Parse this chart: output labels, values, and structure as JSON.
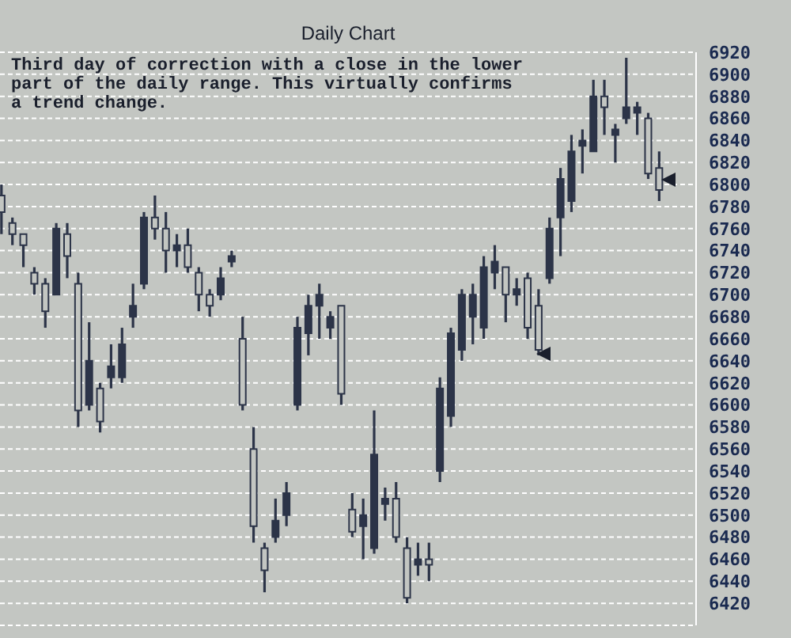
{
  "chart_data": {
    "type": "candlestick",
    "title": "Daily Chart",
    "annotations": [
      "Third day of correction with a close in the lower part of the daily range. This virtually confirms a trend change."
    ],
    "categories": [
      null,
      null,
      null,
      null,
      null,
      null,
      null,
      null,
      null,
      null,
      null,
      null,
      null,
      null,
      null,
      null,
      null,
      null,
      null,
      null,
      null,
      null,
      null,
      null,
      null,
      null,
      null,
      null,
      null,
      null,
      null,
      null,
      null,
      null,
      null,
      null,
      null,
      null,
      null,
      null,
      null,
      null,
      null,
      null,
      null,
      null,
      null,
      null,
      null,
      null,
      null,
      null,
      null,
      null,
      null,
      null,
      null,
      null,
      null,
      null,
      null
    ],
    "ohlc": [
      [
        6790,
        6800,
        6755,
        6775
      ],
      [
        6765,
        6770,
        6745,
        6755
      ],
      [
        6755,
        6755,
        6725,
        6745
      ],
      [
        6720,
        6725,
        6700,
        6710
      ],
      [
        6710,
        6715,
        6670,
        6685
      ],
      [
        6700,
        6765,
        6700,
        6760
      ],
      [
        6755,
        6765,
        6715,
        6735
      ],
      [
        6710,
        6720,
        6580,
        6595
      ],
      [
        6600,
        6675,
        6595,
        6640
      ],
      [
        6615,
        6620,
        6575,
        6585
      ],
      [
        6625,
        6655,
        6615,
        6635
      ],
      [
        6625,
        6670,
        6620,
        6655
      ],
      [
        6680,
        6710,
        6670,
        6690
      ],
      [
        6710,
        6775,
        6705,
        6770
      ],
      [
        6770,
        6790,
        6750,
        6760
      ],
      [
        6760,
        6775,
        6720,
        6740
      ],
      [
        6740,
        6755,
        6725,
        6745
      ],
      [
        6745,
        6760,
        6720,
        6725
      ],
      [
        6720,
        6725,
        6685,
        6700
      ],
      [
        6700,
        6705,
        6680,
        6690
      ],
      [
        6700,
        6725,
        6695,
        6715
      ],
      [
        6730,
        6740,
        6725,
        6735
      ],
      [
        6660,
        6680,
        6595,
        6600
      ],
      [
        6560,
        6580,
        6475,
        6490
      ],
      [
        6470,
        6475,
        6430,
        6450
      ],
      [
        6480,
        6515,
        6475,
        6495
      ],
      [
        6500,
        6530,
        6490,
        6520
      ],
      [
        6600,
        6680,
        6595,
        6670
      ],
      [
        6665,
        6700,
        6645,
        6690
      ],
      [
        6690,
        6710,
        6660,
        6700
      ],
      [
        6670,
        6685,
        6660,
        6680
      ],
      [
        6690,
        6690,
        6600,
        6610
      ],
      [
        6505,
        6520,
        6480,
        6485
      ],
      [
        6490,
        6515,
        6460,
        6500
      ],
      [
        6470,
        6595,
        6465,
        6555
      ],
      [
        6510,
        6525,
        6495,
        6515
      ],
      [
        6515,
        6530,
        6475,
        6480
      ],
      [
        6470,
        6480,
        6420,
        6425
      ],
      [
        6455,
        6475,
        6445,
        6460
      ],
      [
        6460,
        6475,
        6440,
        6455
      ],
      [
        6540,
        6625,
        6530,
        6615
      ],
      [
        6590,
        6670,
        6580,
        6665
      ],
      [
        6650,
        6705,
        6640,
        6700
      ],
      [
        6680,
        6710,
        6655,
        6700
      ],
      [
        6670,
        6735,
        6660,
        6725
      ],
      [
        6720,
        6745,
        6705,
        6730
      ],
      [
        6725,
        6725,
        6675,
        6700
      ],
      [
        6700,
        6715,
        6690,
        6705
      ],
      [
        6715,
        6720,
        6660,
        6670
      ],
      [
        6690,
        6705,
        6645,
        6650
      ],
      [
        6715,
        6770,
        6710,
        6760
      ],
      [
        6770,
        6815,
        6735,
        6805
      ],
      [
        6785,
        6845,
        6775,
        6830
      ],
      [
        6835,
        6850,
        6810,
        6840
      ],
      [
        6830,
        6895,
        6830,
        6880
      ],
      [
        6880,
        6895,
        6845,
        6870
      ],
      [
        6845,
        6855,
        6820,
        6850
      ],
      [
        6860,
        6915,
        6855,
        6870
      ],
      [
        6865,
        6875,
        6845,
        6870
      ],
      [
        6860,
        6865,
        6805,
        6810
      ],
      [
        6815,
        6830,
        6785,
        6795
      ]
    ],
    "ylim": [
      6400,
      6920
    ],
    "yticks": [
      6420,
      6440,
      6460,
      6480,
      6500,
      6520,
      6540,
      6560,
      6580,
      6600,
      6620,
      6640,
      6660,
      6680,
      6700,
      6720,
      6740,
      6760,
      6780,
      6800,
      6820,
      6840,
      6860,
      6880,
      6900,
      6920
    ],
    "tick_labels": "y",
    "grid": "y",
    "color": "#2c3448"
  }
}
